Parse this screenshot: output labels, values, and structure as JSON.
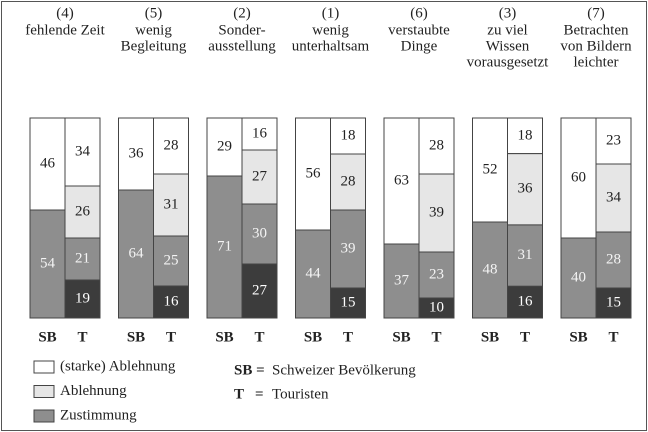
{
  "chart_data": {
    "type": "stacked-bar",
    "columns": [
      "SB",
      "T"
    ],
    "groups": [
      {
        "number": "(4)",
        "label": [
          "fehlende Zeit"
        ],
        "SB": [
          46,
          54
        ],
        "T": [
          34,
          26,
          21,
          19
        ]
      },
      {
        "number": "(5)",
        "label": [
          "wenig",
          "Begleitung"
        ],
        "SB": [
          36,
          64
        ],
        "T": [
          28,
          31,
          25,
          16
        ]
      },
      {
        "number": "(2)",
        "label": [
          "Sonder-",
          "ausstellung"
        ],
        "SB": [
          29,
          71
        ],
        "T": [
          16,
          27,
          30,
          27
        ]
      },
      {
        "number": "(1)",
        "label": [
          "wenig",
          "unterhaltsam"
        ],
        "SB": [
          56,
          44
        ],
        "T": [
          18,
          28,
          39,
          15
        ]
      },
      {
        "number": "(6)",
        "label": [
          "verstaubte",
          "Dinge"
        ],
        "SB": [
          63,
          37
        ],
        "T": [
          28,
          39,
          23,
          10
        ]
      },
      {
        "number": "(3)",
        "label": [
          "zu viel",
          "Wissen",
          "vorausgesetzt"
        ],
        "SB": [
          52,
          48
        ],
        "T": [
          18,
          36,
          31,
          16
        ]
      },
      {
        "number": "(7)",
        "label": [
          "Betrachten",
          "von Bildern",
          "leichter"
        ],
        "SB": [
          60,
          40
        ],
        "T": [
          23,
          34,
          28,
          15
        ]
      }
    ],
    "segment_colors": {
      "SB": [
        "#ffffff",
        "#8e8e8e"
      ],
      "T": [
        "#ffffff",
        "#e6e6e6",
        "#8e8e8e",
        "#3c3c3c"
      ]
    },
    "legend": [
      {
        "label": "(starke) Ablehnung",
        "color": "#ffffff"
      },
      {
        "label": "Ablehnung",
        "color": "#e6e6e6"
      },
      {
        "label": "Zustimmung",
        "color": "#8e8e8e"
      }
    ],
    "key": [
      {
        "abbr": "SB =",
        "text": "Schweizer Bevölkerung"
      },
      {
        "abbr": "T",
        "eq": "=",
        "text": "Touristen"
      }
    ]
  }
}
